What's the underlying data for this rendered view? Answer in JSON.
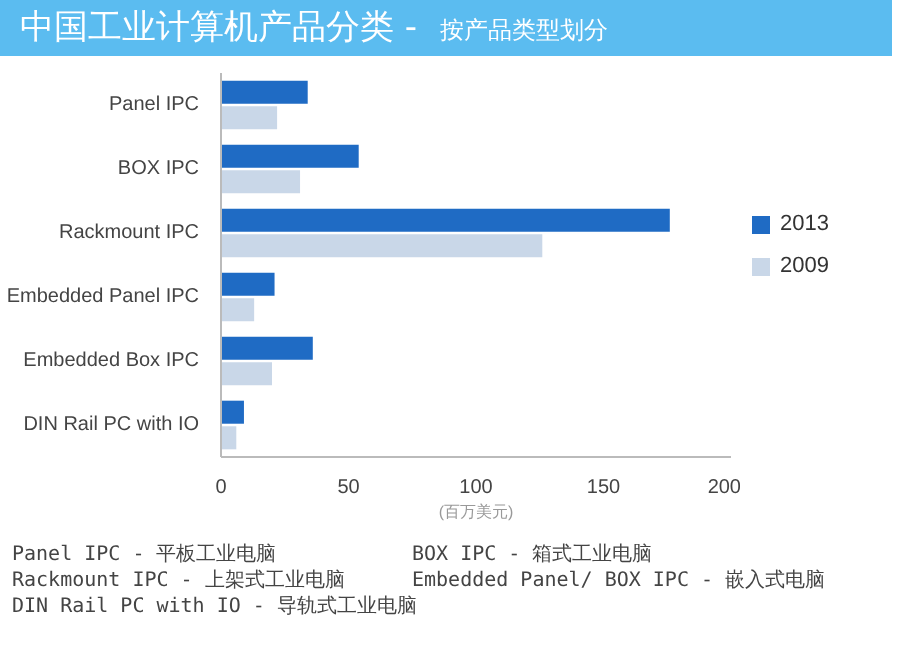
{
  "chart_data": {
    "type": "bar",
    "orientation": "horizontal",
    "title": "中国工业计算机产品分类 -",
    "subtitle": "按产品类型划分",
    "xlabel": "(百万美元)",
    "categories": [
      "Panel IPC",
      "BOX IPC",
      "Rackmount IPC",
      "Embedded Panel IPC",
      "Embedded Box IPC",
      "DIN Rail PC with IO"
    ],
    "series": [
      {
        "name": "2013",
        "color": "#1f6bc4",
        "values": [
          34,
          54,
          176,
          21,
          36,
          9
        ]
      },
      {
        "name": "2009",
        "color": "#c9d7e8",
        "values": [
          22,
          31,
          126,
          13,
          20,
          6
        ]
      }
    ],
    "xlim": [
      0,
      200
    ],
    "xticks": [
      0,
      50,
      100,
      150,
      200
    ],
    "grid": false,
    "legend": "right",
    "annotations": [
      "Panel IPC - 平板工业电脑",
      "BOX IPC - 箱式工业电脑",
      "Rackmount IPC - 上架式工业电脑",
      "Embedded Panel/ BOX IPC - 嵌入式电脑",
      "DIN Rail PC with IO - 导轨式工业电脑"
    ]
  }
}
